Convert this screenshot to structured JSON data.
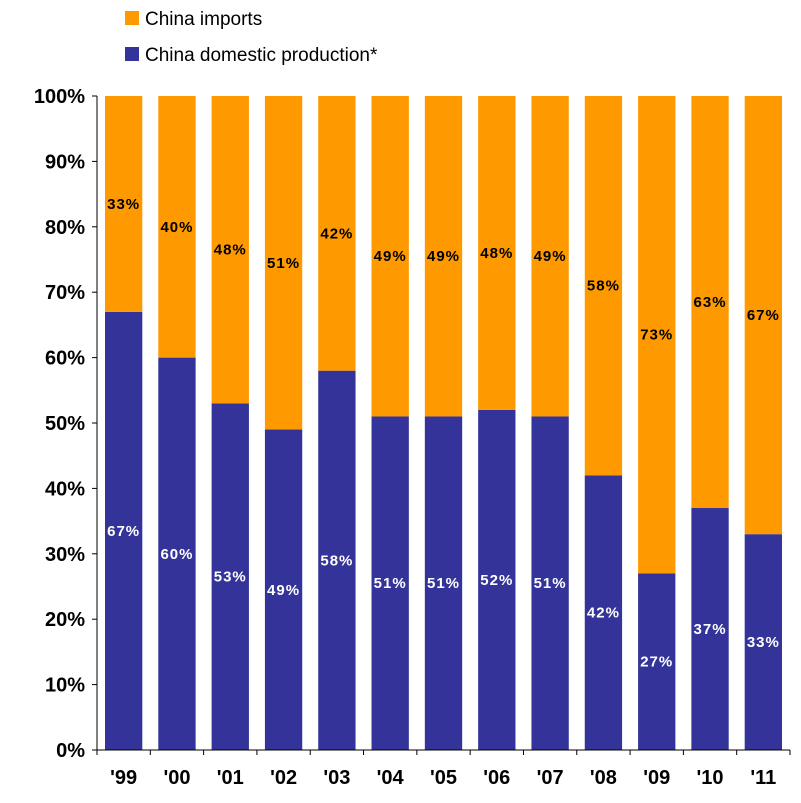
{
  "chart_data": {
    "type": "bar",
    "stacked": true,
    "categories": [
      "'99",
      "'00",
      "'01",
      "'02",
      "'03",
      "'04",
      "'05",
      "'06",
      "'07",
      "'08",
      "'09",
      "'10",
      "'11"
    ],
    "series": [
      {
        "name": "China domestic production*",
        "color": "#333399",
        "values": [
          67,
          60,
          53,
          49,
          58,
          51,
          51,
          52,
          51,
          42,
          27,
          37,
          33
        ],
        "value_labels": [
          "67%",
          "60%",
          "53%",
          "49%",
          "58%",
          "51%",
          "51%",
          "52%",
          "51%",
          "42%",
          "27%",
          "37%",
          "33%"
        ],
        "label_color": "#ffffff"
      },
      {
        "name": "China imports",
        "color": "#ff9900",
        "values": [
          33,
          40,
          48,
          51,
          42,
          49,
          49,
          48,
          49,
          58,
          73,
          63,
          67
        ],
        "value_labels": [
          "33%",
          "40%",
          "48%",
          "51%",
          "42%",
          "49%",
          "49%",
          "48%",
          "49%",
          "58%",
          "73%",
          "63%",
          "67%"
        ],
        "label_color": "#000000"
      }
    ],
    "ylim": [
      0,
      100
    ],
    "yticks": [
      "0%",
      "10%",
      "20%",
      "30%",
      "40%",
      "50%",
      "60%",
      "70%",
      "80%",
      "90%",
      "100%"
    ],
    "legend": {
      "position": "top-left",
      "entries": [
        "China imports",
        "China domestic production*"
      ]
    },
    "grid": false,
    "title": "",
    "xlabel": "",
    "ylabel": ""
  }
}
